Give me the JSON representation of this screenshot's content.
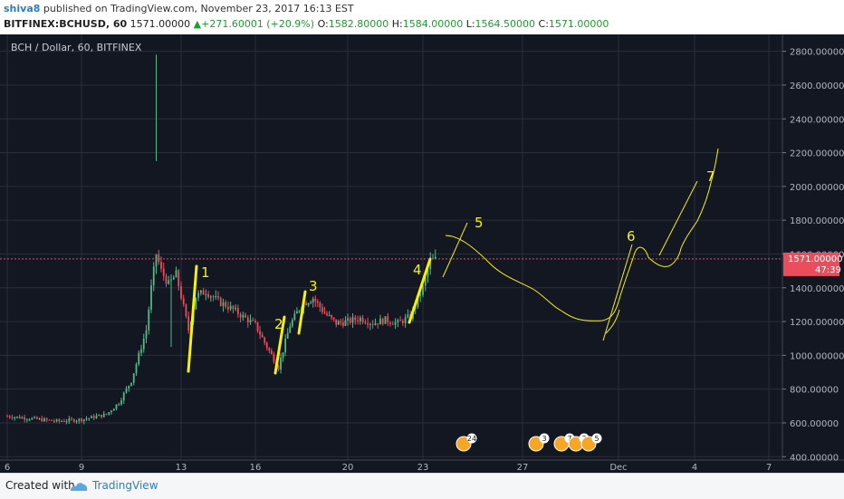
{
  "header": {
    "user": "shiva8",
    "published_text": "published on TradingView.com, November 23, 2017 16:13 EST",
    "symbol_line": "BITFINEX:BCHUSD, 60",
    "last": "1571.00000",
    "change": "+271.60001 (+20.9%)",
    "open_label": "O:",
    "open": "1582.80000",
    "high_label": "H:",
    "high": "1584.00000",
    "low_label": "L:",
    "low": "1564.50000",
    "close_label": "C:",
    "close": "1571.00000",
    "up_arrow": "▲"
  },
  "chart_title": "BCH / Dollar, 60, BITFINEX",
  "footer": {
    "created_with": "Created with",
    "brand": "TradingView"
  },
  "colors": {
    "background": "#131722",
    "grid": "#2a2e39",
    "candle_up": "#53b987",
    "candle_down": "#eb4d5c",
    "annotation": "#f5f10f",
    "price_label_bg": "#eb4d5c",
    "price_line": "#eb4d5c"
  },
  "chart_data": {
    "type": "candlestick",
    "title": "BCH / Dollar, 60, BITFINEX",
    "xlabel": "",
    "ylabel": "",
    "ylim": [
      380,
      2900
    ],
    "x_ticks": [
      "6",
      "9",
      "13",
      "16",
      "20",
      "23",
      "27",
      "Dec",
      "4",
      "7"
    ],
    "y_ticks": [
      "400.00000",
      "600.00000",
      "800.00000",
      "1000.00000",
      "1200.00000",
      "1400.00000",
      "1600.00000",
      "1800.00000",
      "2000.00000",
      "2200.00000",
      "2400.00000",
      "2600.00000",
      "2800.00000"
    ],
    "current_price": 1571,
    "current_price_label": "1571.00000",
    "countdown_label": "47:39",
    "price_path": [
      [
        "6",
        640
      ],
      [
        "7",
        625
      ],
      [
        "8",
        610
      ],
      [
        "9",
        620
      ],
      [
        "10",
        650
      ],
      [
        "10.5",
        720
      ],
      [
        "11",
        850
      ],
      [
        "11.3",
        1000
      ],
      [
        "11.6",
        1150
      ],
      [
        "11.8",
        1400
      ],
      [
        "12",
        1600
      ],
      [
        "12.2",
        1500
      ],
      [
        "12.5",
        1420
      ],
      [
        "12.8",
        1480
      ],
      [
        "13",
        1350
      ],
      [
        "13.3",
        1150
      ],
      [
        "13.6",
        1350
      ],
      [
        "14",
        1380
      ],
      [
        "14.5",
        1320
      ],
      [
        "15",
        1280
      ],
      [
        "15.5",
        1230
      ],
      [
        "16",
        1180
      ],
      [
        "16.5",
        1050
      ],
      [
        "17",
        930
      ],
      [
        "17.5",
        1180
      ],
      [
        "18",
        1300
      ],
      [
        "18.5",
        1340
      ],
      [
        "19",
        1250
      ],
      [
        "19.5",
        1190
      ],
      [
        "20",
        1200
      ],
      [
        "20.5",
        1220
      ],
      [
        "21",
        1190
      ],
      [
        "21.5",
        1210
      ],
      [
        "22",
        1190
      ],
      [
        "22.5",
        1230
      ],
      [
        "23",
        1400
      ],
      [
        "23.3",
        1560
      ],
      [
        "23.6",
        1571
      ]
    ],
    "spikes": [
      [
        "12",
        2780,
        2150
      ],
      [
        "12.6",
        1480,
        1050
      ]
    ],
    "annotations": [
      "1",
      "2",
      "3",
      "4",
      "5",
      "6",
      "7"
    ],
    "event_badges": [
      "24",
      "3",
      "7",
      "3",
      "5"
    ]
  }
}
